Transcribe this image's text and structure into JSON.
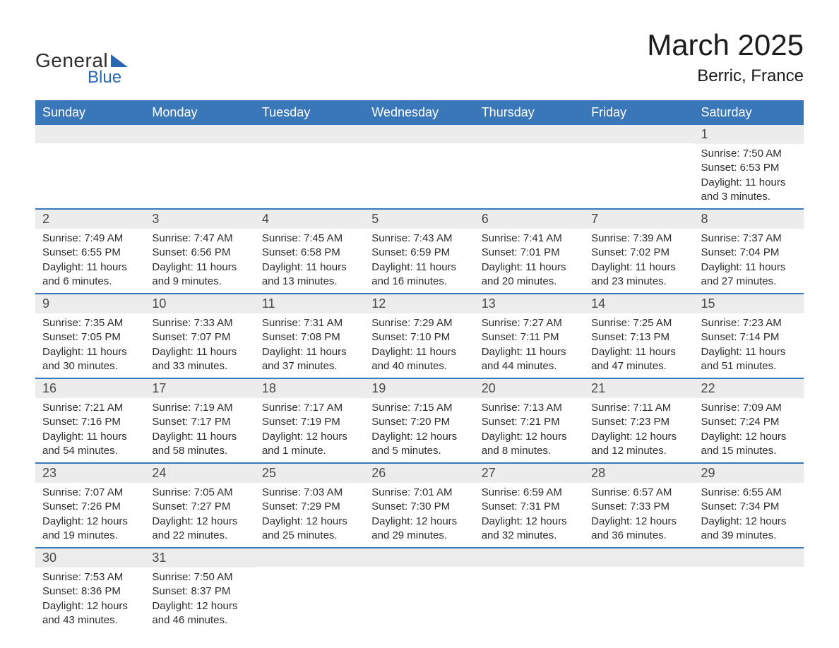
{
  "brand": {
    "name_part1": "General",
    "name_part2": "Blue",
    "text_color": "#2d2d2d",
    "accent_color": "#2968b0"
  },
  "title": "March 2025",
  "location": "Berric, France",
  "colors": {
    "header_bg": "#3a77b9",
    "header_text": "#ffffff",
    "daynum_bg": "#ececec",
    "daynum_text": "#4a4a4a",
    "body_text": "#2d2d2d",
    "row_border": "#3a77b9",
    "page_bg": "#ffffff"
  },
  "typography": {
    "title_fontsize": 42,
    "location_fontsize": 24,
    "header_fontsize": 18,
    "daynum_fontsize": 18,
    "body_fontsize": 15,
    "font_family": "Arial"
  },
  "daysOfWeek": [
    "Sunday",
    "Monday",
    "Tuesday",
    "Wednesday",
    "Thursday",
    "Friday",
    "Saturday"
  ],
  "weeks": [
    [
      {
        "day": "",
        "sunrise": "",
        "sunset": "",
        "daylight": ""
      },
      {
        "day": "",
        "sunrise": "",
        "sunset": "",
        "daylight": ""
      },
      {
        "day": "",
        "sunrise": "",
        "sunset": "",
        "daylight": ""
      },
      {
        "day": "",
        "sunrise": "",
        "sunset": "",
        "daylight": ""
      },
      {
        "day": "",
        "sunrise": "",
        "sunset": "",
        "daylight": ""
      },
      {
        "day": "",
        "sunrise": "",
        "sunset": "",
        "daylight": ""
      },
      {
        "day": "1",
        "sunrise": "Sunrise: 7:50 AM",
        "sunset": "Sunset: 6:53 PM",
        "daylight": "Daylight: 11 hours and 3 minutes."
      }
    ],
    [
      {
        "day": "2",
        "sunrise": "Sunrise: 7:49 AM",
        "sunset": "Sunset: 6:55 PM",
        "daylight": "Daylight: 11 hours and 6 minutes."
      },
      {
        "day": "3",
        "sunrise": "Sunrise: 7:47 AM",
        "sunset": "Sunset: 6:56 PM",
        "daylight": "Daylight: 11 hours and 9 minutes."
      },
      {
        "day": "4",
        "sunrise": "Sunrise: 7:45 AM",
        "sunset": "Sunset: 6:58 PM",
        "daylight": "Daylight: 11 hours and 13 minutes."
      },
      {
        "day": "5",
        "sunrise": "Sunrise: 7:43 AM",
        "sunset": "Sunset: 6:59 PM",
        "daylight": "Daylight: 11 hours and 16 minutes."
      },
      {
        "day": "6",
        "sunrise": "Sunrise: 7:41 AM",
        "sunset": "Sunset: 7:01 PM",
        "daylight": "Daylight: 11 hours and 20 minutes."
      },
      {
        "day": "7",
        "sunrise": "Sunrise: 7:39 AM",
        "sunset": "Sunset: 7:02 PM",
        "daylight": "Daylight: 11 hours and 23 minutes."
      },
      {
        "day": "8",
        "sunrise": "Sunrise: 7:37 AM",
        "sunset": "Sunset: 7:04 PM",
        "daylight": "Daylight: 11 hours and 27 minutes."
      }
    ],
    [
      {
        "day": "9",
        "sunrise": "Sunrise: 7:35 AM",
        "sunset": "Sunset: 7:05 PM",
        "daylight": "Daylight: 11 hours and 30 minutes."
      },
      {
        "day": "10",
        "sunrise": "Sunrise: 7:33 AM",
        "sunset": "Sunset: 7:07 PM",
        "daylight": "Daylight: 11 hours and 33 minutes."
      },
      {
        "day": "11",
        "sunrise": "Sunrise: 7:31 AM",
        "sunset": "Sunset: 7:08 PM",
        "daylight": "Daylight: 11 hours and 37 minutes."
      },
      {
        "day": "12",
        "sunrise": "Sunrise: 7:29 AM",
        "sunset": "Sunset: 7:10 PM",
        "daylight": "Daylight: 11 hours and 40 minutes."
      },
      {
        "day": "13",
        "sunrise": "Sunrise: 7:27 AM",
        "sunset": "Sunset: 7:11 PM",
        "daylight": "Daylight: 11 hours and 44 minutes."
      },
      {
        "day": "14",
        "sunrise": "Sunrise: 7:25 AM",
        "sunset": "Sunset: 7:13 PM",
        "daylight": "Daylight: 11 hours and 47 minutes."
      },
      {
        "day": "15",
        "sunrise": "Sunrise: 7:23 AM",
        "sunset": "Sunset: 7:14 PM",
        "daylight": "Daylight: 11 hours and 51 minutes."
      }
    ],
    [
      {
        "day": "16",
        "sunrise": "Sunrise: 7:21 AM",
        "sunset": "Sunset: 7:16 PM",
        "daylight": "Daylight: 11 hours and 54 minutes."
      },
      {
        "day": "17",
        "sunrise": "Sunrise: 7:19 AM",
        "sunset": "Sunset: 7:17 PM",
        "daylight": "Daylight: 11 hours and 58 minutes."
      },
      {
        "day": "18",
        "sunrise": "Sunrise: 7:17 AM",
        "sunset": "Sunset: 7:19 PM",
        "daylight": "Daylight: 12 hours and 1 minute."
      },
      {
        "day": "19",
        "sunrise": "Sunrise: 7:15 AM",
        "sunset": "Sunset: 7:20 PM",
        "daylight": "Daylight: 12 hours and 5 minutes."
      },
      {
        "day": "20",
        "sunrise": "Sunrise: 7:13 AM",
        "sunset": "Sunset: 7:21 PM",
        "daylight": "Daylight: 12 hours and 8 minutes."
      },
      {
        "day": "21",
        "sunrise": "Sunrise: 7:11 AM",
        "sunset": "Sunset: 7:23 PM",
        "daylight": "Daylight: 12 hours and 12 minutes."
      },
      {
        "day": "22",
        "sunrise": "Sunrise: 7:09 AM",
        "sunset": "Sunset: 7:24 PM",
        "daylight": "Daylight: 12 hours and 15 minutes."
      }
    ],
    [
      {
        "day": "23",
        "sunrise": "Sunrise: 7:07 AM",
        "sunset": "Sunset: 7:26 PM",
        "daylight": "Daylight: 12 hours and 19 minutes."
      },
      {
        "day": "24",
        "sunrise": "Sunrise: 7:05 AM",
        "sunset": "Sunset: 7:27 PM",
        "daylight": "Daylight: 12 hours and 22 minutes."
      },
      {
        "day": "25",
        "sunrise": "Sunrise: 7:03 AM",
        "sunset": "Sunset: 7:29 PM",
        "daylight": "Daylight: 12 hours and 25 minutes."
      },
      {
        "day": "26",
        "sunrise": "Sunrise: 7:01 AM",
        "sunset": "Sunset: 7:30 PM",
        "daylight": "Daylight: 12 hours and 29 minutes."
      },
      {
        "day": "27",
        "sunrise": "Sunrise: 6:59 AM",
        "sunset": "Sunset: 7:31 PM",
        "daylight": "Daylight: 12 hours and 32 minutes."
      },
      {
        "day": "28",
        "sunrise": "Sunrise: 6:57 AM",
        "sunset": "Sunset: 7:33 PM",
        "daylight": "Daylight: 12 hours and 36 minutes."
      },
      {
        "day": "29",
        "sunrise": "Sunrise: 6:55 AM",
        "sunset": "Sunset: 7:34 PM",
        "daylight": "Daylight: 12 hours and 39 minutes."
      }
    ],
    [
      {
        "day": "30",
        "sunrise": "Sunrise: 7:53 AM",
        "sunset": "Sunset: 8:36 PM",
        "daylight": "Daylight: 12 hours and 43 minutes."
      },
      {
        "day": "31",
        "sunrise": "Sunrise: 7:50 AM",
        "sunset": "Sunset: 8:37 PM",
        "daylight": "Daylight: 12 hours and 46 minutes."
      },
      {
        "day": "",
        "sunrise": "",
        "sunset": "",
        "daylight": ""
      },
      {
        "day": "",
        "sunrise": "",
        "sunset": "",
        "daylight": ""
      },
      {
        "day": "",
        "sunrise": "",
        "sunset": "",
        "daylight": ""
      },
      {
        "day": "",
        "sunrise": "",
        "sunset": "",
        "daylight": ""
      },
      {
        "day": "",
        "sunrise": "",
        "sunset": "",
        "daylight": ""
      }
    ]
  ]
}
